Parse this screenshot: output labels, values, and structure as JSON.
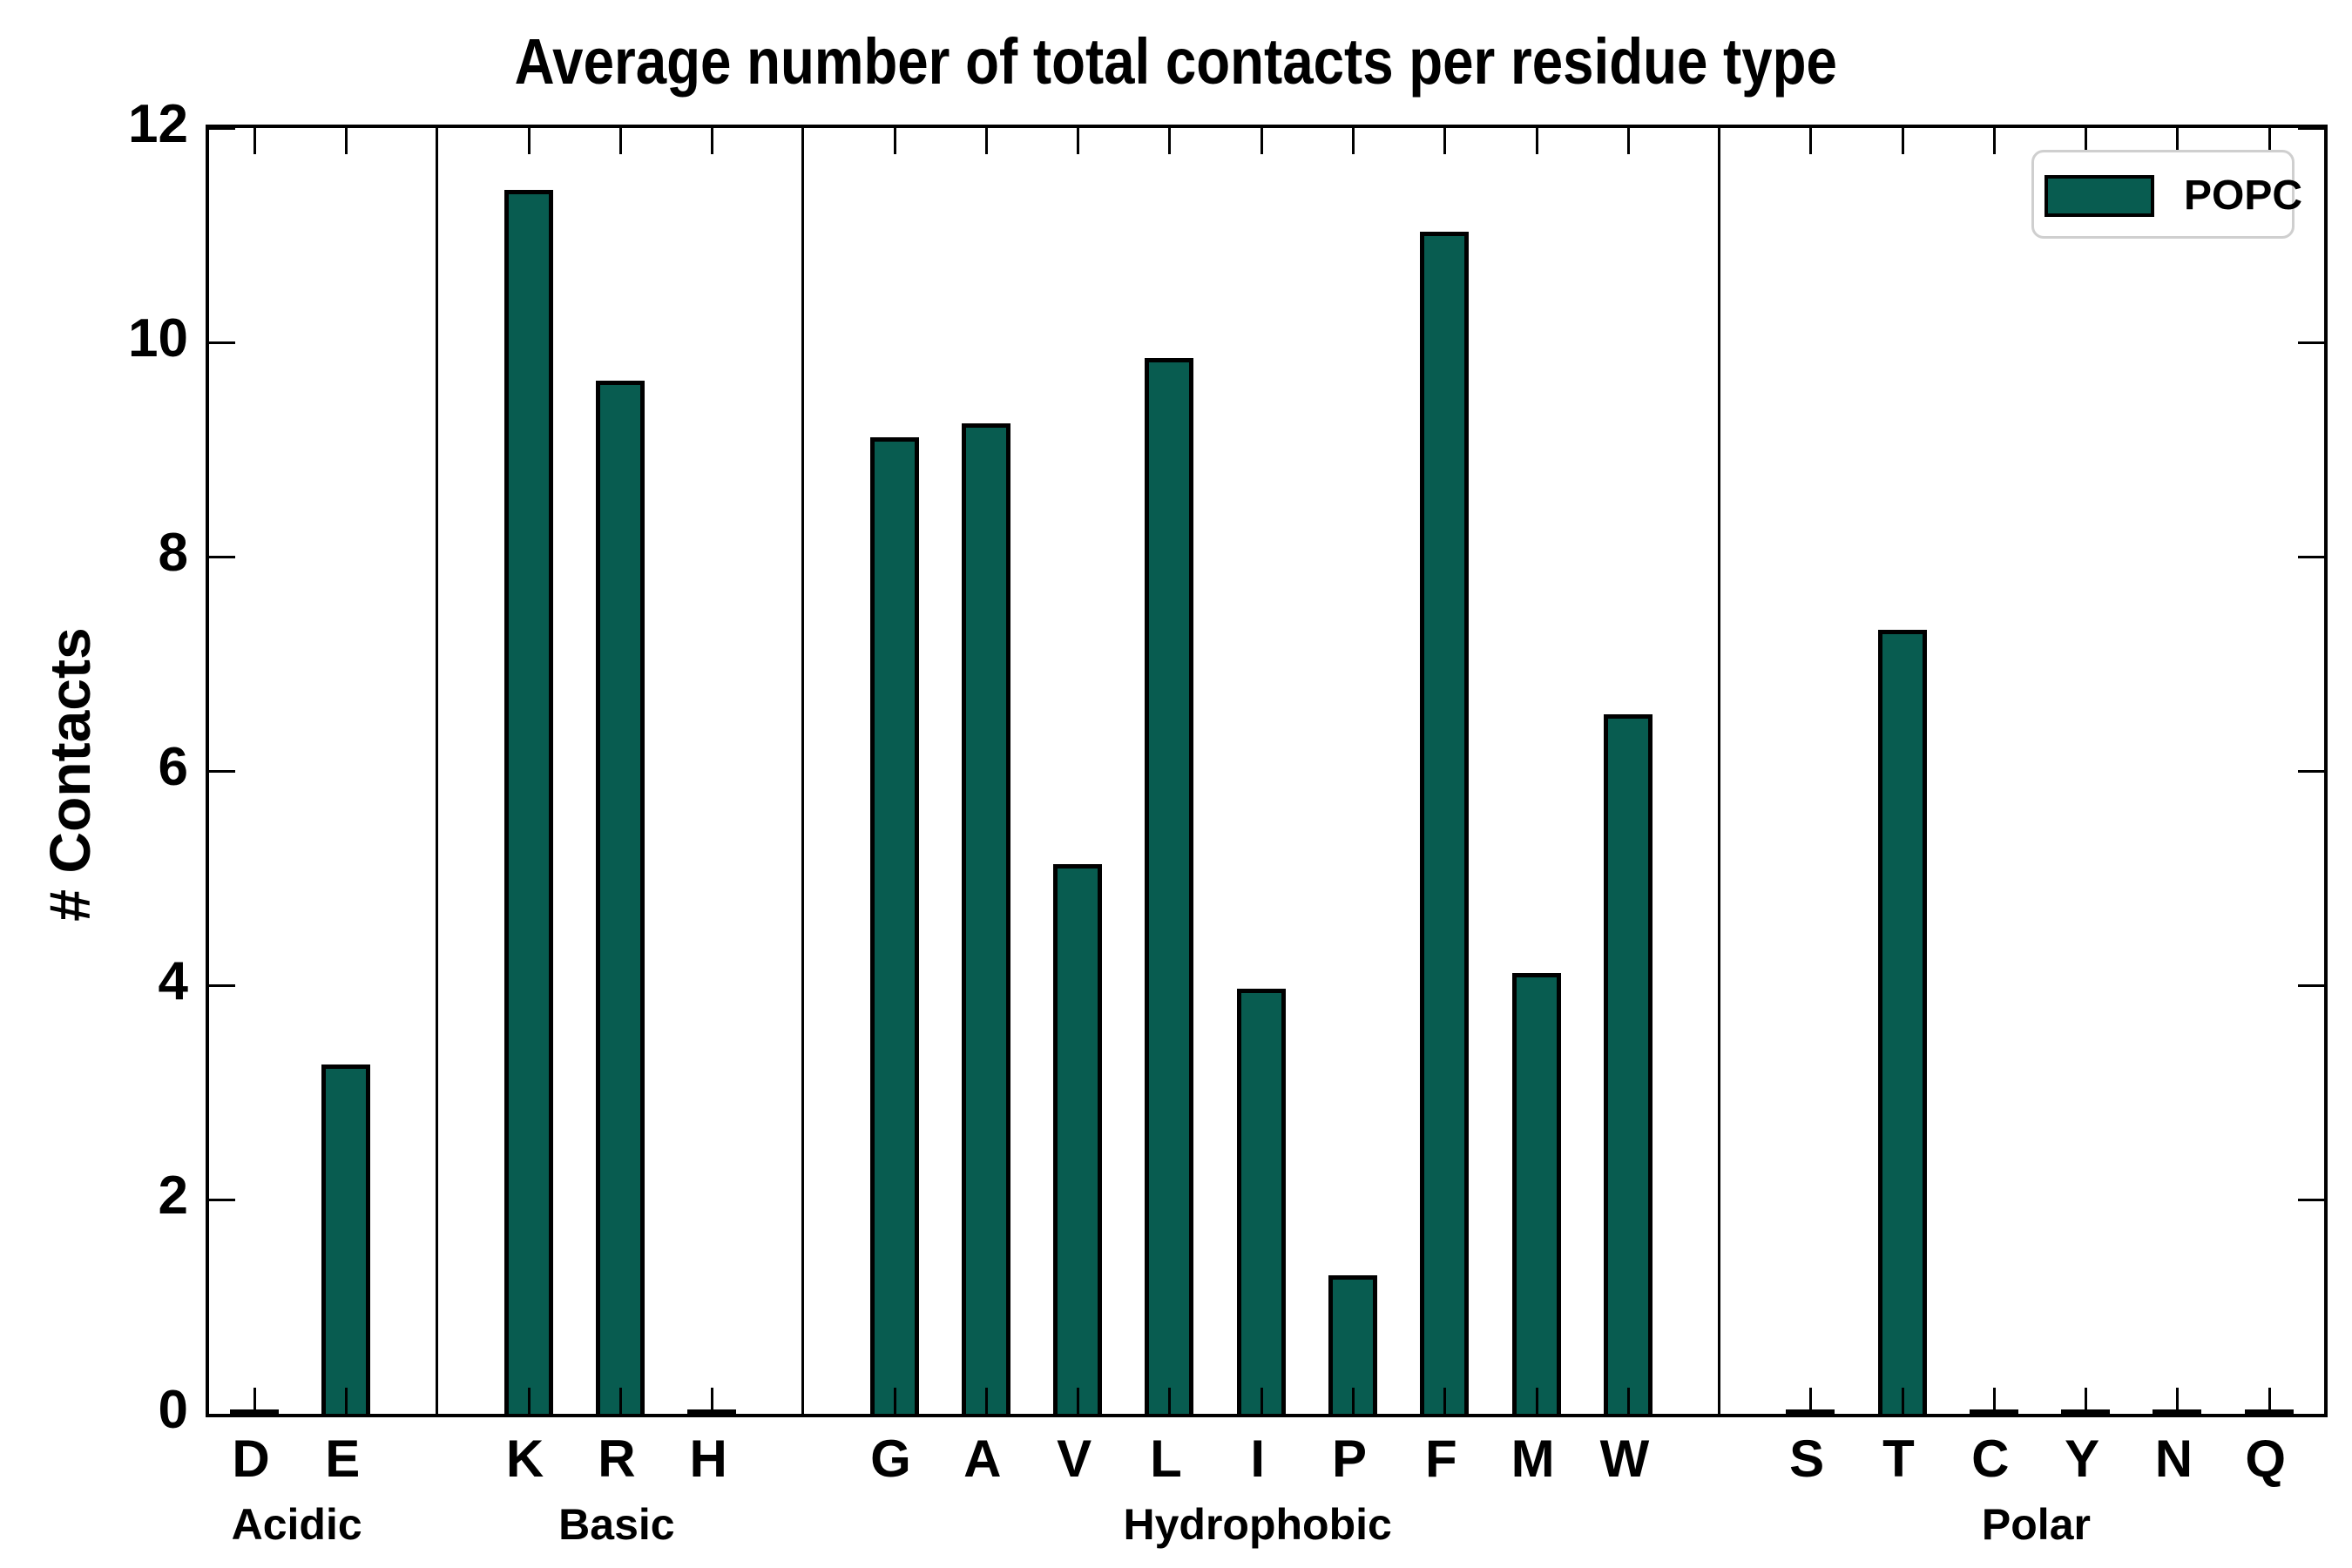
{
  "chart_data": {
    "type": "bar",
    "title": "Average number of total contacts per residue type",
    "xlabel": "",
    "ylabel": "# Contacts",
    "ylim": [
      0,
      12
    ],
    "yticks": [
      0,
      2,
      4,
      6,
      8,
      10,
      12
    ],
    "grid": false,
    "legend_position": "upper right",
    "legend": [
      {
        "label": "POPC",
        "color": "#085C50"
      }
    ],
    "bar_color": "#085C50",
    "bar_edge_color": "#000000",
    "groups": [
      {
        "label": "Acidic",
        "categories": [
          "D",
          "E"
        ],
        "values": [
          0,
          3.26
        ]
      },
      {
        "label": "Basic",
        "categories": [
          "K",
          "R",
          "H"
        ],
        "values": [
          11.42,
          9.64,
          0
        ]
      },
      {
        "label": "Hydrophobic",
        "categories": [
          "G",
          "A",
          "V",
          "L",
          "I",
          "P",
          "F",
          "M",
          "W"
        ],
        "values": [
          9.11,
          9.24,
          5.13,
          9.85,
          3.97,
          1.29,
          11.03,
          4.11,
          6.53
        ]
      },
      {
        "label": "Polar",
        "categories": [
          "S",
          "T",
          "C",
          "Y",
          "N",
          "Q"
        ],
        "values": [
          0,
          7.32,
          0,
          0,
          0,
          0
        ]
      }
    ]
  }
}
